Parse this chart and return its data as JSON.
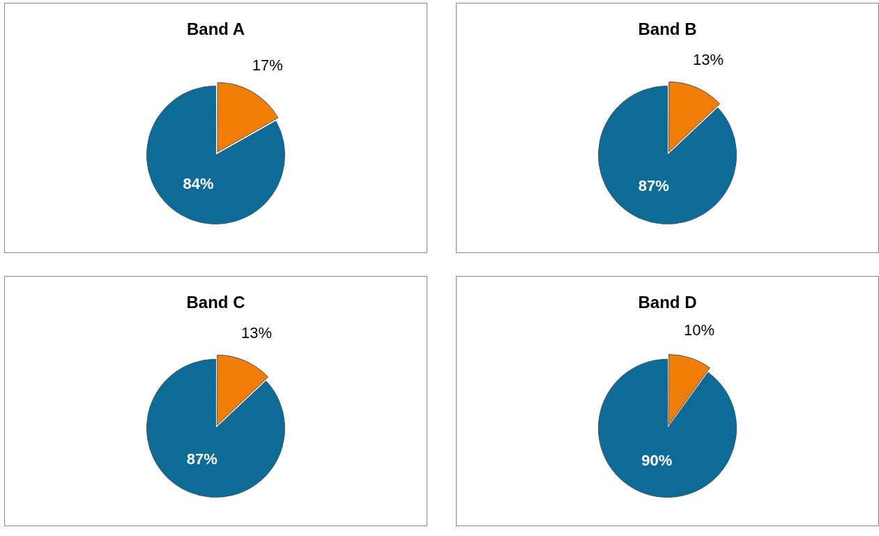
{
  "chart_data": [
    {
      "type": "pie",
      "title": "Band A",
      "categories": [
        null,
        null
      ],
      "values": [
        17,
        84
      ],
      "colors": [
        "#f07d05",
        "#0e6a96"
      ],
      "value_labels": [
        "17%",
        "84%"
      ]
    },
    {
      "type": "pie",
      "title": "Band B",
      "categories": [
        null,
        null
      ],
      "values": [
        13,
        87
      ],
      "colors": [
        "#f07d05",
        "#0e6a96"
      ],
      "value_labels": [
        "13%",
        "87%"
      ]
    },
    {
      "type": "pie",
      "title": "Band C",
      "categories": [
        null,
        null
      ],
      "values": [
        13,
        87
      ],
      "colors": [
        "#f07d05",
        "#0e6a96"
      ],
      "value_labels": [
        "13%",
        "87%"
      ]
    },
    {
      "type": "pie",
      "title": "Band D",
      "categories": [
        null,
        null
      ],
      "values": [
        10,
        90
      ],
      "colors": [
        "#f07d05",
        "#0e6a96"
      ],
      "value_labels": [
        "10%",
        "90%"
      ]
    }
  ]
}
